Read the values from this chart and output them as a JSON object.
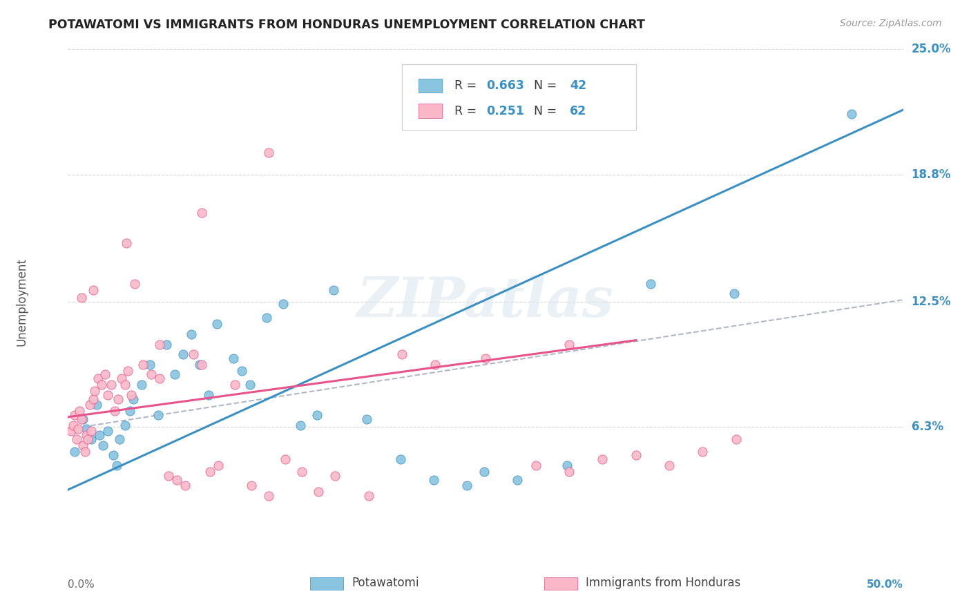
{
  "title": "POTAWATOMI VS IMMIGRANTS FROM HONDURAS UNEMPLOYMENT CORRELATION CHART",
  "source": "Source: ZipAtlas.com",
  "ylabel": "Unemployment",
  "x_range": [
    0.0,
    50.0
  ],
  "y_range": [
    0.0,
    25.0
  ],
  "y_ticks": [
    6.3,
    12.5,
    18.8,
    25.0
  ],
  "y_tick_labels": [
    "6.3%",
    "12.5%",
    "18.8%",
    "25.0%"
  ],
  "color_blue": "#89c4e1",
  "color_pink": "#f9b8c8",
  "color_blue_dark": "#3a8fc4",
  "color_pink_dark": "#e8538a",
  "color_dashed": "#b0b8c8",
  "color_text": "#3a3a3a",
  "color_grid": "#cccccc",
  "color_r": "#3a8fc4",
  "legend_r1": "0.663",
  "legend_n1": "42",
  "legend_r2": "0.251",
  "legend_n2": "62",
  "bottom_label1": "Potawatomi",
  "bottom_label2": "Immigrants from Honduras",
  "watermark": "ZIPatlas",
  "blue_scatter": [
    [
      0.4,
      5.1
    ],
    [
      0.9,
      6.7
    ],
    [
      1.1,
      6.2
    ],
    [
      1.4,
      5.7
    ],
    [
      1.7,
      7.4
    ],
    [
      1.9,
      5.9
    ],
    [
      2.1,
      5.4
    ],
    [
      2.4,
      6.1
    ],
    [
      2.7,
      4.9
    ],
    [
      2.9,
      4.4
    ],
    [
      3.1,
      5.7
    ],
    [
      3.4,
      6.4
    ],
    [
      3.7,
      7.1
    ],
    [
      3.9,
      7.7
    ],
    [
      4.4,
      8.4
    ],
    [
      4.9,
      9.4
    ],
    [
      5.4,
      6.9
    ],
    [
      5.9,
      10.4
    ],
    [
      6.4,
      8.9
    ],
    [
      6.9,
      9.9
    ],
    [
      7.4,
      10.9
    ],
    [
      7.9,
      9.4
    ],
    [
      8.4,
      7.9
    ],
    [
      8.9,
      11.4
    ],
    [
      9.9,
      9.7
    ],
    [
      10.4,
      9.1
    ],
    [
      10.9,
      8.4
    ],
    [
      11.9,
      11.7
    ],
    [
      12.9,
      12.4
    ],
    [
      13.9,
      6.4
    ],
    [
      14.9,
      6.9
    ],
    [
      15.9,
      13.1
    ],
    [
      17.9,
      6.7
    ],
    [
      19.9,
      4.7
    ],
    [
      21.9,
      3.7
    ],
    [
      23.9,
      3.4
    ],
    [
      24.9,
      4.1
    ],
    [
      26.9,
      3.7
    ],
    [
      29.9,
      4.4
    ],
    [
      34.9,
      13.4
    ],
    [
      39.9,
      12.9
    ],
    [
      46.9,
      21.8
    ]
  ],
  "pink_scatter": [
    [
      0.2,
      6.1
    ],
    [
      0.3,
      6.4
    ],
    [
      0.4,
      6.9
    ],
    [
      0.5,
      5.7
    ],
    [
      0.6,
      6.2
    ],
    [
      0.7,
      7.1
    ],
    [
      0.8,
      6.7
    ],
    [
      0.9,
      5.4
    ],
    [
      1.0,
      5.1
    ],
    [
      1.1,
      5.9
    ],
    [
      1.2,
      5.7
    ],
    [
      1.3,
      7.4
    ],
    [
      1.4,
      6.1
    ],
    [
      1.5,
      7.7
    ],
    [
      1.6,
      8.1
    ],
    [
      1.8,
      8.7
    ],
    [
      2.0,
      8.4
    ],
    [
      2.2,
      8.9
    ],
    [
      2.4,
      7.9
    ],
    [
      2.6,
      8.4
    ],
    [
      2.8,
      7.1
    ],
    [
      3.0,
      7.7
    ],
    [
      3.2,
      8.7
    ],
    [
      3.4,
      8.4
    ],
    [
      3.6,
      9.1
    ],
    [
      3.8,
      7.9
    ],
    [
      4.0,
      13.4
    ],
    [
      4.5,
      9.4
    ],
    [
      5.0,
      8.9
    ],
    [
      5.5,
      8.7
    ],
    [
      6.0,
      3.9
    ],
    [
      6.5,
      3.7
    ],
    [
      7.0,
      3.4
    ],
    [
      7.5,
      9.9
    ],
    [
      8.0,
      9.4
    ],
    [
      8.5,
      4.1
    ],
    [
      9.0,
      4.4
    ],
    [
      10.0,
      8.4
    ],
    [
      11.0,
      3.4
    ],
    [
      12.0,
      2.9
    ],
    [
      13.0,
      4.7
    ],
    [
      14.0,
      4.1
    ],
    [
      15.0,
      3.1
    ],
    [
      16.0,
      3.9
    ],
    [
      18.0,
      2.9
    ],
    [
      20.0,
      9.9
    ],
    [
      22.0,
      9.4
    ],
    [
      25.0,
      9.7
    ],
    [
      28.0,
      4.4
    ],
    [
      30.0,
      4.1
    ],
    [
      32.0,
      4.7
    ],
    [
      34.0,
      4.9
    ],
    [
      36.0,
      4.4
    ],
    [
      38.0,
      5.1
    ],
    [
      40.0,
      5.7
    ],
    [
      12.0,
      19.9
    ],
    [
      8.0,
      16.9
    ],
    [
      3.5,
      15.4
    ],
    [
      0.8,
      12.7
    ],
    [
      1.5,
      13.1
    ],
    [
      5.5,
      10.4
    ],
    [
      30.0,
      10.4
    ]
  ],
  "blue_line_x0": 0.0,
  "blue_line_y0": 3.2,
  "blue_line_x1": 50.0,
  "blue_line_y1": 22.0,
  "pink_line_x0": 0.0,
  "pink_line_y0": 6.8,
  "pink_line_x1": 34.0,
  "pink_line_y1": 10.6,
  "dashed_line_x0": 0.0,
  "dashed_line_y0": 6.2,
  "dashed_line_x1": 50.0,
  "dashed_line_y1": 12.6
}
